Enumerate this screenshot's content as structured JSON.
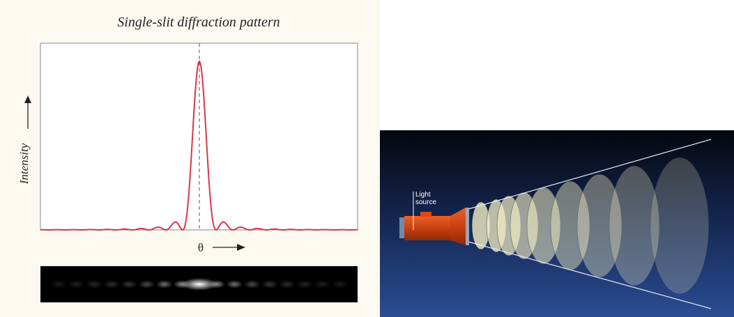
{
  "diffraction": {
    "title": "Single-slit diffraction pattern",
    "y_label": "Intensity",
    "x_label": "θ"
  },
  "flashlight": {
    "label_lines": [
      "Light",
      "source"
    ]
  }
}
